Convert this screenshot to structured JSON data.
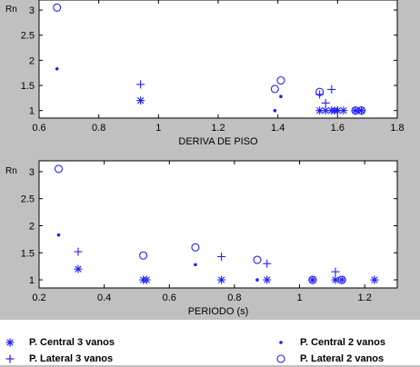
{
  "colors": {
    "background": "#c0c0c0",
    "axes_bg": "#ffffff",
    "marker": "#1f1fff",
    "text": "#000000"
  },
  "chart_data": [
    {
      "type": "scatter",
      "xlabel": "DERIVA DE PISO",
      "ylabel": "Rn",
      "xlim": [
        0.6,
        1.8
      ],
      "ylim": [
        0.85,
        3.2
      ],
      "xticks": [
        "0.6",
        "0.8",
        "1",
        "1.2",
        "1.4",
        "1.6",
        "1.8"
      ],
      "yticks": [
        "1",
        "1.5",
        "2",
        "2.5",
        "3"
      ],
      "grid": false,
      "series": [
        {
          "name": "P. Central 3 vanos",
          "marker": "star",
          "points": [
            [
              0.94,
              1.2
            ],
            [
              1.54,
              1.0
            ],
            [
              1.56,
              1.0
            ],
            [
              1.58,
              1.0
            ],
            [
              1.59,
              1.0
            ],
            [
              1.6,
              1.0
            ],
            [
              1.62,
              1.0
            ],
            [
              1.66,
              1.0
            ],
            [
              1.68,
              1.0
            ]
          ]
        },
        {
          "name": "P. Lateral 3 vanos",
          "marker": "plus",
          "points": [
            [
              0.94,
              1.52
            ],
            [
              1.54,
              1.32
            ],
            [
              1.56,
              1.15
            ],
            [
              1.58,
              1.42
            ],
            [
              1.6,
              1.0
            ],
            [
              1.66,
              1.0
            ],
            [
              1.68,
              1.0
            ]
          ]
        },
        {
          "name": "P. Central 2 vanos",
          "marker": "dot",
          "points": [
            [
              0.66,
              1.83
            ],
            [
              1.39,
              1.0
            ],
            [
              1.41,
              1.28
            ],
            [
              1.54,
              1.0
            ]
          ]
        },
        {
          "name": "P. Lateral 2 vanos",
          "marker": "circle",
          "points": [
            [
              0.66,
              3.05
            ],
            [
              1.39,
              1.43
            ],
            [
              1.41,
              1.6
            ],
            [
              1.54,
              1.37
            ],
            [
              1.66,
              1.0
            ],
            [
              1.68,
              1.0
            ]
          ]
        }
      ]
    },
    {
      "type": "scatter",
      "xlabel": "PERIODO (s)",
      "ylabel": "Rn",
      "xlim": [
        0.2,
        1.3
      ],
      "ylim": [
        0.85,
        3.2
      ],
      "xticks": [
        "0.2",
        "0.4",
        "0.6",
        "0.8",
        "1",
        "1.2"
      ],
      "yticks": [
        "1",
        "1.5",
        "2",
        "2.5",
        "3"
      ],
      "grid": false,
      "series": [
        {
          "name": "P. Central 3 vanos",
          "marker": "star",
          "points": [
            [
              0.32,
              1.2
            ],
            [
              0.52,
              1.0
            ],
            [
              0.53,
              1.0
            ],
            [
              0.76,
              1.0
            ],
            [
              0.9,
              1.0
            ],
            [
              1.04,
              1.0
            ],
            [
              1.11,
              1.0
            ],
            [
              1.13,
              1.0
            ],
            [
              1.23,
              1.0
            ]
          ]
        },
        {
          "name": "P. Lateral 3 vanos",
          "marker": "plus",
          "points": [
            [
              0.32,
              1.52
            ],
            [
              0.76,
              1.43
            ],
            [
              0.9,
              1.3
            ],
            [
              1.11,
              1.15
            ],
            [
              1.23,
              1.0
            ]
          ]
        },
        {
          "name": "P. Central 2 vanos",
          "marker": "dot",
          "points": [
            [
              0.26,
              1.83
            ],
            [
              0.68,
              1.28
            ],
            [
              0.87,
              1.0
            ],
            [
              1.04,
              1.0
            ],
            [
              1.11,
              1.0
            ]
          ]
        },
        {
          "name": "P. Lateral 2 vanos",
          "marker": "circle",
          "points": [
            [
              0.26,
              3.05
            ],
            [
              0.52,
              1.45
            ],
            [
              0.68,
              1.6
            ],
            [
              0.87,
              1.37
            ],
            [
              1.04,
              1.0
            ],
            [
              1.13,
              1.0
            ]
          ]
        }
      ]
    }
  ],
  "legend": [
    {
      "marker": "star",
      "label": "P. Central 3 vanos"
    },
    {
      "marker": "dot",
      "label": "P. Central 2 vanos"
    },
    {
      "marker": "plus",
      "label": "P. Lateral 3 vanos"
    },
    {
      "marker": "circle",
      "label": "P. Lateral 2 vanos"
    }
  ]
}
